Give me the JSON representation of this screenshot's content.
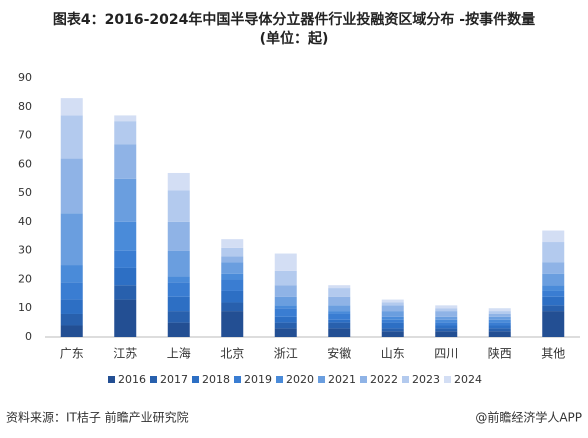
{
  "chart_data": {
    "type": "stacked_bar",
    "title": "图表4：2016-2024年中国半导体分立器件行业投融资区域分布 -按事件数量",
    "subtitle": "(单位：起)",
    "source": "资料来源：IT桔子 前瞻产业研究院",
    "credit": "@前瞻经济学人APP",
    "categories": [
      "广东",
      "江苏",
      "上海",
      "北京",
      "浙江",
      "安徽",
      "山东",
      "四川",
      "陕西",
      "其他"
    ],
    "series": [
      {
        "name": "2016",
        "color": "#234f93",
        "values": [
          4,
          13,
          5,
          9,
          3,
          3,
          2,
          2,
          2,
          9
        ]
      },
      {
        "name": "2017",
        "color": "#2860ad",
        "values": [
          4,
          5,
          4,
          3,
          2,
          2,
          1,
          1,
          1,
          2
        ]
      },
      {
        "name": "2018",
        "color": "#2d6fc4",
        "values": [
          5,
          6,
          5,
          4,
          2,
          1,
          2,
          1,
          1,
          3
        ]
      },
      {
        "name": "2019",
        "color": "#3a7dd2",
        "values": [
          6,
          6,
          5,
          4,
          3,
          2,
          1,
          1,
          1,
          2
        ]
      },
      {
        "name": "2020",
        "color": "#4a8bd9",
        "values": [
          6,
          10,
          2,
          2,
          1,
          1,
          1,
          1,
          1,
          2
        ]
      },
      {
        "name": "2021",
        "color": "#6a9edf",
        "values": [
          18,
          15,
          9,
          4,
          3,
          2,
          2,
          1,
          1,
          4
        ]
      },
      {
        "name": "2022",
        "color": "#8fb3e6",
        "values": [
          19,
          12,
          10,
          2,
          4,
          3,
          2,
          2,
          1,
          4
        ]
      },
      {
        "name": "2023",
        "color": "#b3caee",
        "values": [
          15,
          8,
          11,
          3,
          5,
          3,
          1,
          1,
          1,
          7
        ]
      },
      {
        "name": "2024",
        "color": "#d3def4",
        "values": [
          6,
          2,
          6,
          3,
          6,
          1,
          1,
          1,
          1,
          4
        ]
      }
    ],
    "ylim": [
      0,
      90
    ],
    "yticks": [
      0,
      10,
      20,
      30,
      40,
      50,
      60,
      70,
      80,
      90
    ]
  }
}
